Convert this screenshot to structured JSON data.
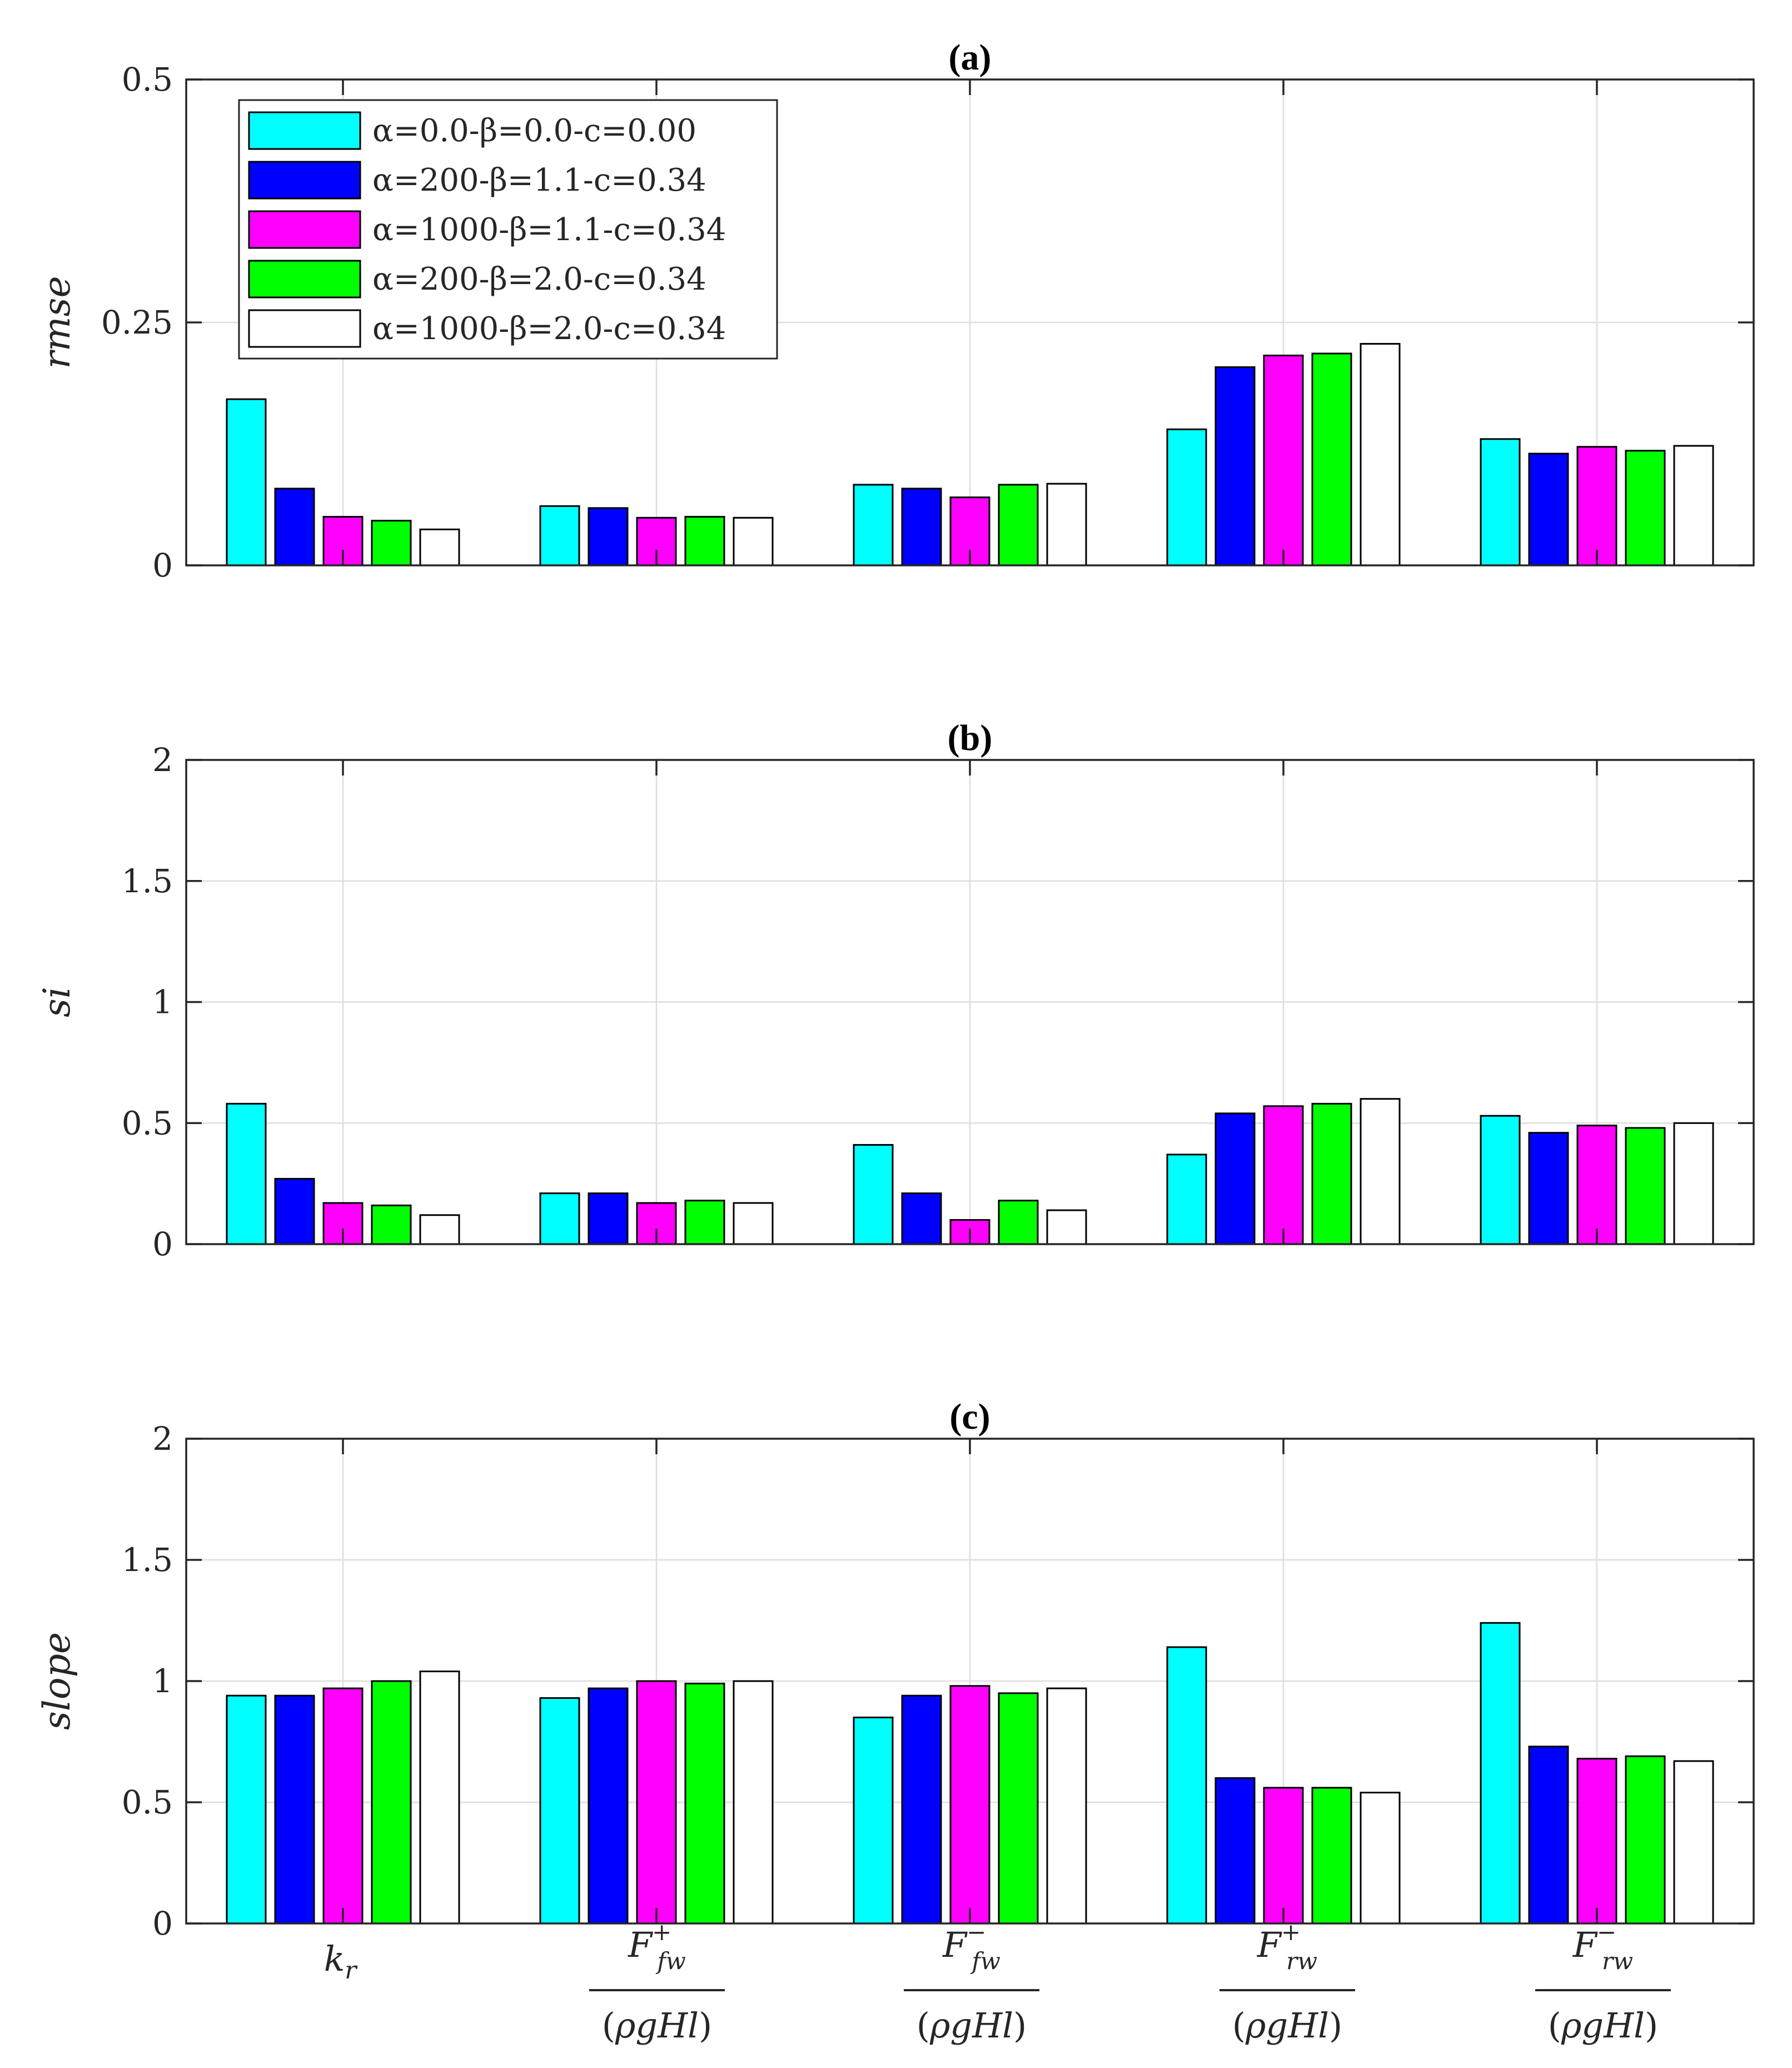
{
  "colors": [
    "#00ffff",
    "#0000ff",
    "#ff00ff",
    "#00ff00",
    "#ffffff"
  ],
  "chart_data": [
    {
      "type": "bar",
      "title": "(a)",
      "xlabel": "",
      "ylabel": "rmse",
      "ylim": [
        0,
        0.5
      ],
      "yticks": [
        0,
        0.25,
        0.5
      ],
      "ytick_labels": [
        "0",
        "0.25",
        "0.5"
      ],
      "grid": true,
      "legend": "top-left",
      "categories": [
        "k_r",
        "F+_fw/(ρgHl)",
        "F−_fw/(ρgHl)",
        "F+_rw/(ρgHl)",
        "F−_rw/(ρgHl)"
      ],
      "series": [
        {
          "name": "α=0.0-β=0.0-c=0.00",
          "values": [
            0.171,
            0.061,
            0.083,
            0.14,
            0.13
          ]
        },
        {
          "name": "α=200-β=1.1-c=0.34",
          "values": [
            0.079,
            0.059,
            0.079,
            0.204,
            0.115
          ]
        },
        {
          "name": "α=1000-β=1.1-c=0.34",
          "values": [
            0.05,
            0.049,
            0.07,
            0.216,
            0.122
          ]
        },
        {
          "name": "α=200-β=2.0-c=0.34",
          "values": [
            0.046,
            0.05,
            0.083,
            0.218,
            0.118
          ]
        },
        {
          "name": "α=1000-β=2.0-c=0.34",
          "values": [
            0.037,
            0.049,
            0.084,
            0.228,
            0.123
          ]
        }
      ]
    },
    {
      "type": "bar",
      "title": "(b)",
      "xlabel": "",
      "ylabel": "si",
      "ylim": [
        0,
        2
      ],
      "yticks": [
        0,
        0.5,
        1,
        1.5,
        2
      ],
      "ytick_labels": [
        "0",
        "0.5",
        "1",
        "1.5",
        "2"
      ],
      "grid": true,
      "categories": [
        "k_r",
        "F+_fw/(ρgHl)",
        "F−_fw/(ρgHl)",
        "F+_rw/(ρgHl)",
        "F−_rw/(ρgHl)"
      ],
      "series": [
        {
          "name": "α=0.0-β=0.0-c=0.00",
          "values": [
            0.58,
            0.21,
            0.41,
            0.37,
            0.53
          ]
        },
        {
          "name": "α=200-β=1.1-c=0.34",
          "values": [
            0.27,
            0.21,
            0.21,
            0.54,
            0.46
          ]
        },
        {
          "name": "α=1000-β=1.1-c=0.34",
          "values": [
            0.17,
            0.17,
            0.1,
            0.57,
            0.49
          ]
        },
        {
          "name": "α=200-β=2.0-c=0.34",
          "values": [
            0.16,
            0.18,
            0.18,
            0.58,
            0.48
          ]
        },
        {
          "name": "α=1000-β=2.0-c=0.34",
          "values": [
            0.12,
            0.17,
            0.14,
            0.6,
            0.5
          ]
        }
      ]
    },
    {
      "type": "bar",
      "title": "(c)",
      "xlabel": "",
      "ylabel": "slope",
      "ylim": [
        0,
        2
      ],
      "yticks": [
        0,
        0.5,
        1,
        1.5,
        2
      ],
      "ytick_labels": [
        "0",
        "0.5",
        "1",
        "1.5",
        "2"
      ],
      "grid": true,
      "categories": [
        "k_r",
        "F+_fw/(ρgHl)",
        "F−_fw/(ρgHl)",
        "F+_rw/(ρgHl)",
        "F−_rw/(ρgHl)"
      ],
      "series": [
        {
          "name": "α=0.0-β=0.0-c=0.00",
          "values": [
            0.94,
            0.93,
            0.85,
            1.14,
            1.24
          ]
        },
        {
          "name": "α=200-β=1.1-c=0.34",
          "values": [
            0.94,
            0.97,
            0.94,
            0.6,
            0.73
          ]
        },
        {
          "name": "α=1000-β=1.1-c=0.34",
          "values": [
            0.97,
            1.0,
            0.98,
            0.56,
            0.68
          ]
        },
        {
          "name": "α=200-β=2.0-c=0.34",
          "values": [
            1.0,
            0.99,
            0.95,
            0.56,
            0.69
          ]
        },
        {
          "name": "α=1000-β=2.0-c=0.34",
          "values": [
            1.04,
            1.0,
            0.97,
            0.54,
            0.67
          ]
        }
      ]
    }
  ]
}
